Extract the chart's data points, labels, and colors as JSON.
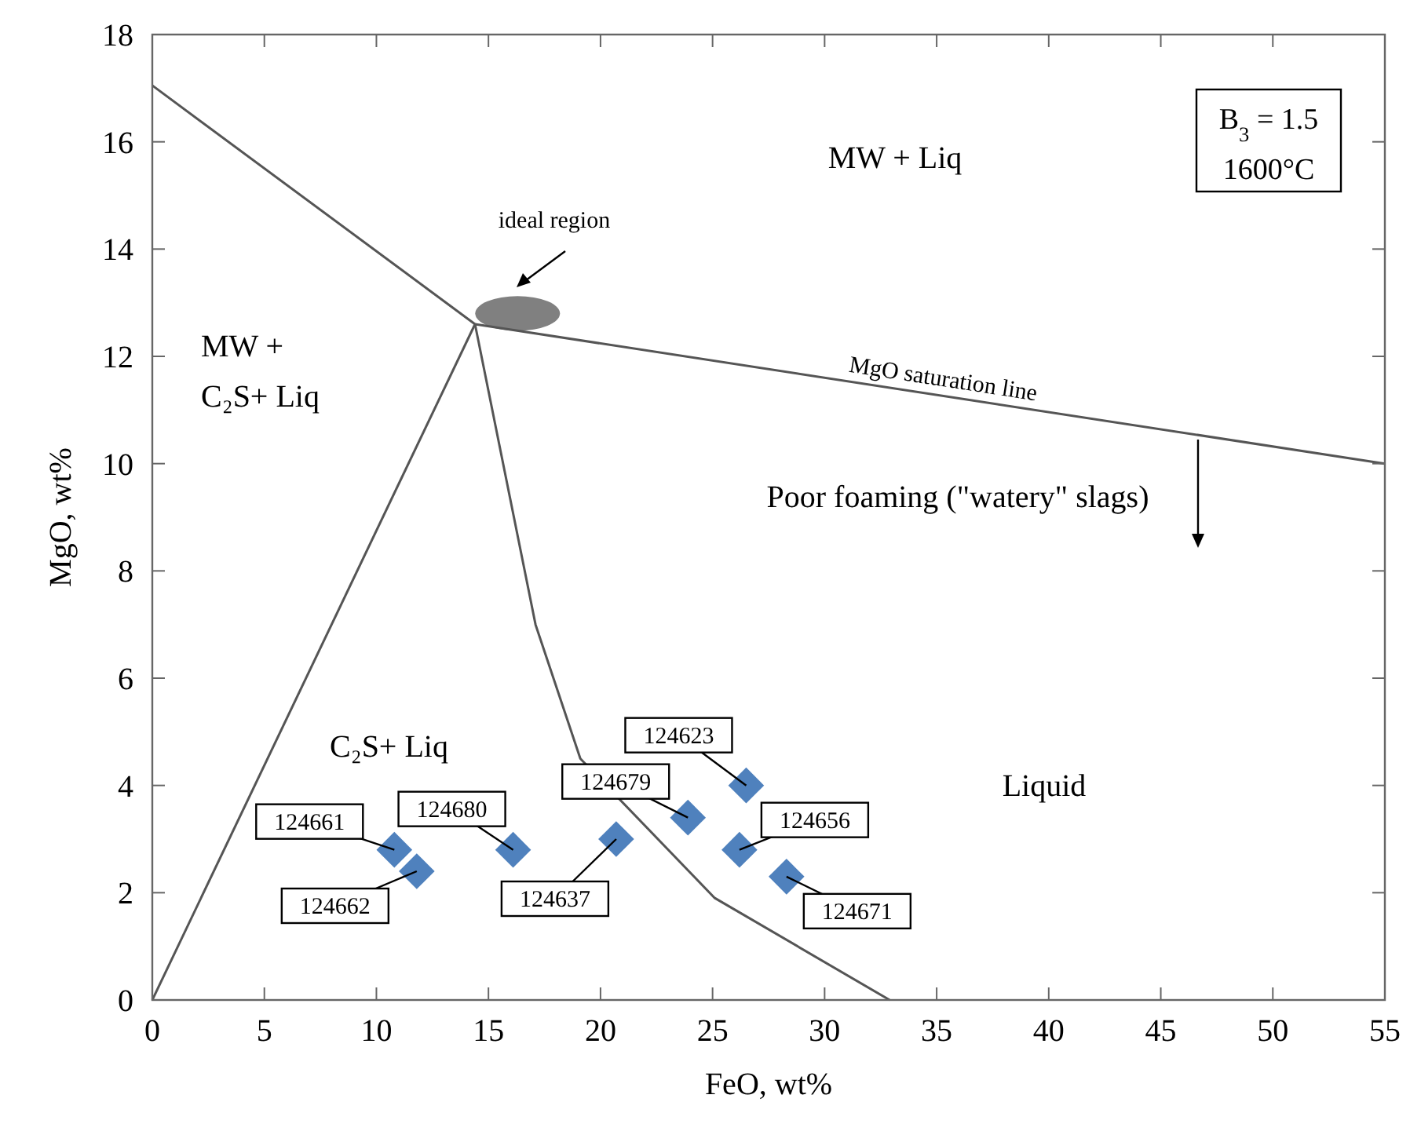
{
  "chart_data": {
    "type": "line",
    "xlabel": "FeO, wt%",
    "ylabel": "MgO, wt%",
    "xlim": [
      0,
      55
    ],
    "xticks": [
      0,
      5,
      10,
      15,
      20,
      25,
      30,
      35,
      40,
      45,
      50,
      55
    ],
    "ylim": [
      0,
      18
    ],
    "yticks": [
      0,
      2,
      4,
      6,
      8,
      10,
      12,
      14,
      16,
      18
    ],
    "grid": false,
    "series": [
      {
        "color": "#555555",
        "x": [
          0,
          14.4
        ],
        "values": [
          17.05,
          12.6
        ]
      },
      {
        "color": "#555555",
        "x": [
          14.4,
          55
        ],
        "values": [
          12.6,
          10.0
        ]
      },
      {
        "color": "#555555",
        "x": [
          0,
          14.4
        ],
        "values": [
          0,
          12.6
        ]
      },
      {
        "color": "#555555",
        "x": [
          14.4,
          17.1,
          19.1,
          25.1,
          32.9
        ],
        "values": [
          12.6,
          7.0,
          4.5,
          1.9,
          0
        ]
      },
      {
        "type": "scatter",
        "marker": "diamond",
        "color": "#4f81bd",
        "x": [
          10.8,
          11.8,
          16.1,
          20.7,
          23.9,
          26.5,
          26.2,
          28.3
        ],
        "values": [
          2.8,
          2.4,
          2.8,
          3.0,
          3.4,
          4.0,
          2.8,
          2.3
        ]
      }
    ],
    "annotations": [
      "MW + Liq",
      "MW +",
      "C₂S+ Liq",
      "C₂S+ Liq",
      "Liquid",
      "Poor foaming (\"watery\" slags)",
      "ideal region",
      "MgO saturation line",
      "B$_{3}$ = 1.5",
      "1600°C",
      {
        "text": "124661",
        "x": 10.8,
        "y": 2.8
      },
      {
        "text": "124662",
        "x": 11.8,
        "y": 2.4
      },
      {
        "text": "124680",
        "x": 16.1,
        "y": 2.8
      },
      {
        "text": "124637",
        "x": 20.7,
        "y": 3.0
      },
      {
        "text": "124679",
        "x": 23.9,
        "y": 3.4
      },
      {
        "text": "124623",
        "x": 26.5,
        "y": 4.0
      },
      {
        "text": "124656",
        "x": 26.2,
        "y": 2.8
      },
      {
        "text": "124671",
        "x": 28.3,
        "y": 2.3
      }
    ]
  }
}
